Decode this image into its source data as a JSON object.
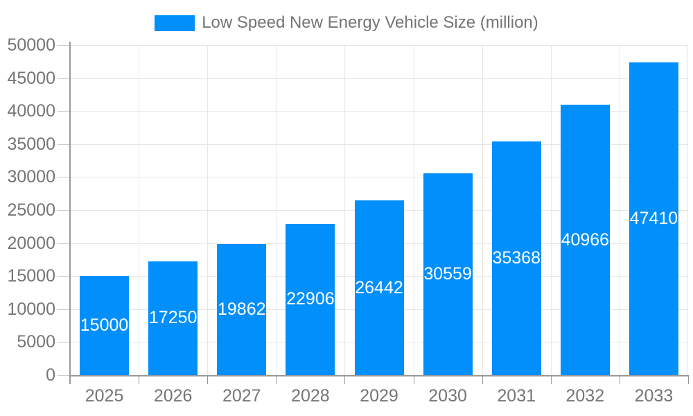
{
  "legend": {
    "label": "Low Speed New Energy Vehicle Size (million)"
  },
  "chart_data": {
    "type": "bar",
    "title": "",
    "categories": [
      "2025",
      "2026",
      "2027",
      "2028",
      "2029",
      "2030",
      "2031",
      "2032",
      "2033"
    ],
    "series": [
      {
        "name": "Low Speed New Energy Vehicle Size (million)",
        "values": [
          15000,
          17250,
          19862,
          22906,
          26442,
          30559,
          35368,
          40966,
          47410
        ]
      }
    ],
    "xlabel": "",
    "ylabel": "",
    "ylim": [
      0,
      50000
    ],
    "yticks": [
      0,
      5000,
      10000,
      15000,
      20000,
      25000,
      30000,
      35000,
      40000,
      45000,
      50000
    ],
    "grid": true,
    "legend_position": "top",
    "value_label_position": "inside-center",
    "colors": {
      "bar": "#008FFB",
      "axis_label": "#757575",
      "value_label": "#FFFFFF",
      "gridline": "#E7E7E7",
      "axis_line": "#999999",
      "y_tick": "#CCCCCC",
      "background": "#FFFFFF"
    }
  }
}
